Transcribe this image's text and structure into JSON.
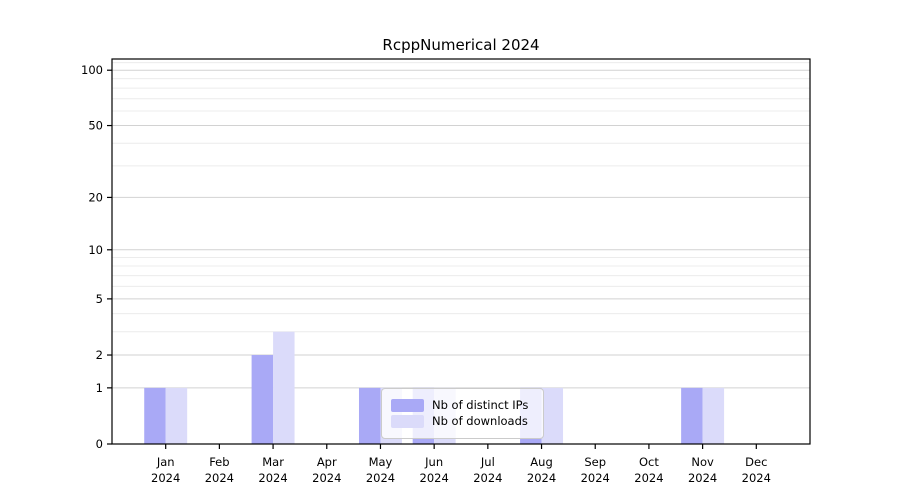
{
  "chart_data": {
    "type": "bar",
    "title": "RcppNumerical 2024",
    "categories": [
      "Jan",
      "Feb",
      "Mar",
      "Apr",
      "May",
      "Jun",
      "Jul",
      "Aug",
      "Sep",
      "Oct",
      "Nov",
      "Dec"
    ],
    "year_label": "2024",
    "series": [
      {
        "name": "Nb of distinct IPs",
        "color": "#a9a9f6",
        "values": [
          1,
          0,
          2,
          0,
          1,
          1,
          0,
          1,
          0,
          0,
          1,
          0
        ]
      },
      {
        "name": "Nb of downloads",
        "color": "#dbdbfa",
        "values": [
          1,
          0,
          3,
          0,
          1,
          1,
          0,
          1,
          0,
          0,
          1,
          0
        ]
      }
    ],
    "yscale": "log1p",
    "ylim": [
      0,
      115
    ],
    "y_ticks": [
      0,
      1,
      2,
      5,
      10,
      20,
      50,
      100
    ],
    "y_minor_ticks": [
      3,
      4,
      6,
      7,
      8,
      9,
      30,
      40,
      60,
      70,
      80,
      90,
      110
    ],
    "xlabel": "",
    "ylabel": "",
    "grid": true,
    "legend_position": "lower center",
    "colors": {
      "major_grid": "#d2d2d2",
      "minor_grid": "#ececec",
      "axis": "#000000",
      "text": "#000000",
      "background": "#ffffff"
    }
  }
}
